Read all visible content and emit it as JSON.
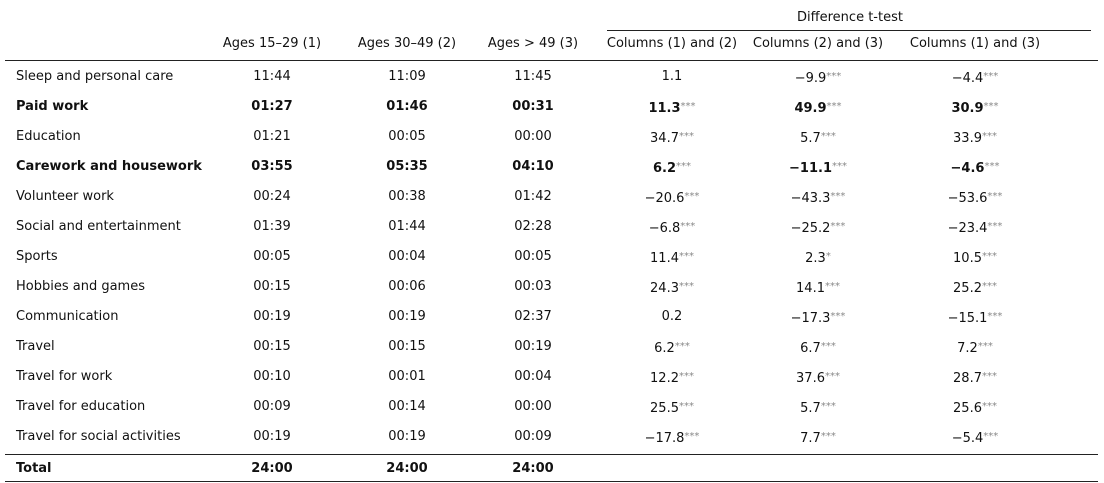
{
  "table": {
    "group_header": "Difference t-test",
    "columns": [
      "Ages 15–29 (1)",
      "Ages 30–49 (2)",
      "Ages > 49 (3)",
      "Columns (1) and (2)",
      "Columns (2) and (3)",
      "Columns (1) and (3)"
    ],
    "rows": [
      {
        "label": "Sleep and personal care",
        "cells": [
          "11:44",
          "11:09",
          "11:45",
          {
            "value": "1.1"
          },
          {
            "value": "−9.9",
            "sig": "***"
          },
          {
            "value": "−4.4",
            "sig": "***"
          }
        ]
      },
      {
        "label": "Paid work",
        "bold": true,
        "cells": [
          "01:27",
          "01:46",
          "00:31",
          {
            "value": "11.3",
            "sig": "***"
          },
          {
            "value": "49.9",
            "sig": "***"
          },
          {
            "value": "30.9",
            "sig": "***"
          }
        ]
      },
      {
        "label": "Education",
        "cells": [
          "01:21",
          "00:05",
          "00:00",
          {
            "value": "34.7",
            "sig": "***"
          },
          {
            "value": "5.7",
            "sig": "***"
          },
          {
            "value": "33.9",
            "sig": "***"
          }
        ]
      },
      {
        "label": "Carework and housework",
        "bold": true,
        "cells": [
          "03:55",
          "05:35",
          "04:10",
          {
            "value": "6.2",
            "sig": "***"
          },
          {
            "value": "−11.1",
            "sig": "***"
          },
          {
            "value": "−4.6",
            "sig": "***"
          }
        ]
      },
      {
        "label": "Volunteer work",
        "cells": [
          "00:24",
          "00:38",
          "01:42",
          {
            "value": "−20.6",
            "sig": "***"
          },
          {
            "value": "−43.3",
            "sig": "***"
          },
          {
            "value": "−53.6",
            "sig": "***"
          }
        ]
      },
      {
        "label": "Social and entertainment",
        "cells": [
          "01:39",
          "01:44",
          "02:28",
          {
            "value": "−6.8",
            "sig": "***"
          },
          {
            "value": "−25.2",
            "sig": "***"
          },
          {
            "value": "−23.4",
            "sig": "***"
          }
        ]
      },
      {
        "label": "Sports",
        "cells": [
          "00:05",
          "00:04",
          "00:05",
          {
            "value": "11.4",
            "sig": "***"
          },
          {
            "value": "2.3",
            "sig": "*"
          },
          {
            "value": "10.5",
            "sig": "***"
          }
        ]
      },
      {
        "label": "Hobbies and games",
        "cells": [
          "00:15",
          "00:06",
          "00:03",
          {
            "value": "24.3",
            "sig": "***"
          },
          {
            "value": "14.1",
            "sig": "***"
          },
          {
            "value": "25.2",
            "sig": "***"
          }
        ]
      },
      {
        "label": "Communication",
        "cells": [
          "00:19",
          "00:19",
          "02:37",
          {
            "value": "0.2"
          },
          {
            "value": "−17.3",
            "sig": "***"
          },
          {
            "value": "−15.1",
            "sig": "***"
          }
        ]
      },
      {
        "label": "Travel",
        "cells": [
          "00:15",
          "00:15",
          "00:19",
          {
            "value": "6.2",
            "sig": "***"
          },
          {
            "value": "6.7",
            "sig": "***"
          },
          {
            "value": "7.2",
            "sig": "***"
          }
        ]
      },
      {
        "label": "Travel for work",
        "cells": [
          "00:10",
          "00:01",
          "00:04",
          {
            "value": "12.2",
            "sig": "***"
          },
          {
            "value": "37.6",
            "sig": "***"
          },
          {
            "value": "28.7",
            "sig": "***"
          }
        ]
      },
      {
        "label": "Travel for education",
        "cells": [
          "00:09",
          "00:14",
          "00:00",
          {
            "value": "25.5",
            "sig": "***"
          },
          {
            "value": "5.7",
            "sig": "***"
          },
          {
            "value": "25.6",
            "sig": "***"
          }
        ]
      },
      {
        "label": "Travel for social activities",
        "cells": [
          "00:19",
          "00:19",
          "00:09",
          {
            "value": "−17.8",
            "sig": "***"
          },
          {
            "value": "7.7",
            "sig": "***"
          },
          {
            "value": "−5.4",
            "sig": "***"
          }
        ]
      },
      {
        "label": "Total",
        "bold": true,
        "cells": [
          "24:00",
          "24:00",
          "24:00"
        ]
      }
    ]
  }
}
